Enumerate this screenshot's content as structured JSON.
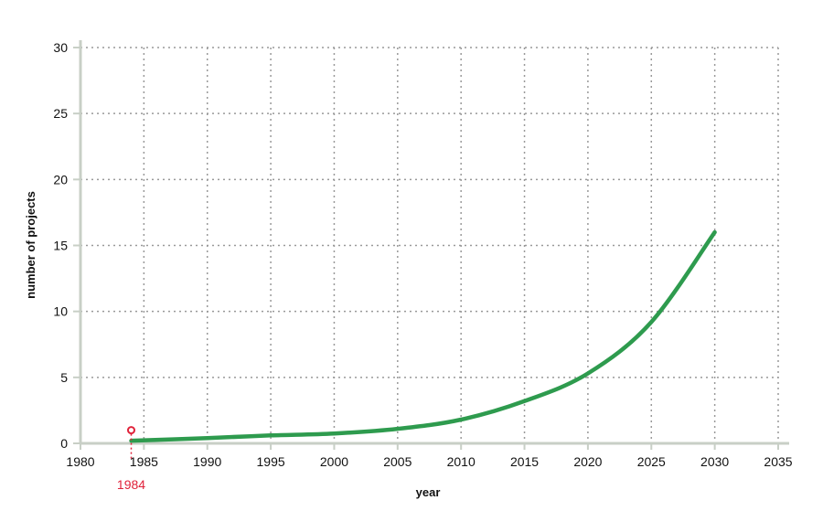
{
  "chart_data": {
    "type": "line",
    "title": "",
    "xlabel": "year",
    "ylabel": "number of projects",
    "xlim": [
      1980,
      2035
    ],
    "ylim": [
      0,
      30
    ],
    "x_ticks": [
      "1980",
      "1985",
      "1990",
      "1995",
      "2000",
      "2005",
      "2010",
      "2015",
      "2020",
      "2025",
      "2030",
      "2035"
    ],
    "y_ticks": [
      "0",
      "5",
      "10",
      "15",
      "20",
      "25",
      "30"
    ],
    "grid": true,
    "legend": false,
    "series": [
      {
        "color": "#2e9b4e",
        "points": [
          [
            1984,
            0.2
          ],
          [
            1990,
            0.4
          ],
          [
            1995,
            0.6
          ],
          [
            2000,
            0.75
          ],
          [
            2005,
            1.1
          ],
          [
            2010,
            1.8
          ],
          [
            2015,
            3.2
          ],
          [
            2020,
            5.3
          ],
          [
            2025,
            9.2
          ],
          [
            2030,
            16.0
          ]
        ]
      }
    ],
    "annotations": [
      {
        "label": "1984",
        "x": 1984,
        "y": 1.0,
        "color": "#e0223a"
      }
    ],
    "colors": {
      "axis": "#c8cfc6",
      "grid": "#999999",
      "text": "#111111"
    }
  }
}
